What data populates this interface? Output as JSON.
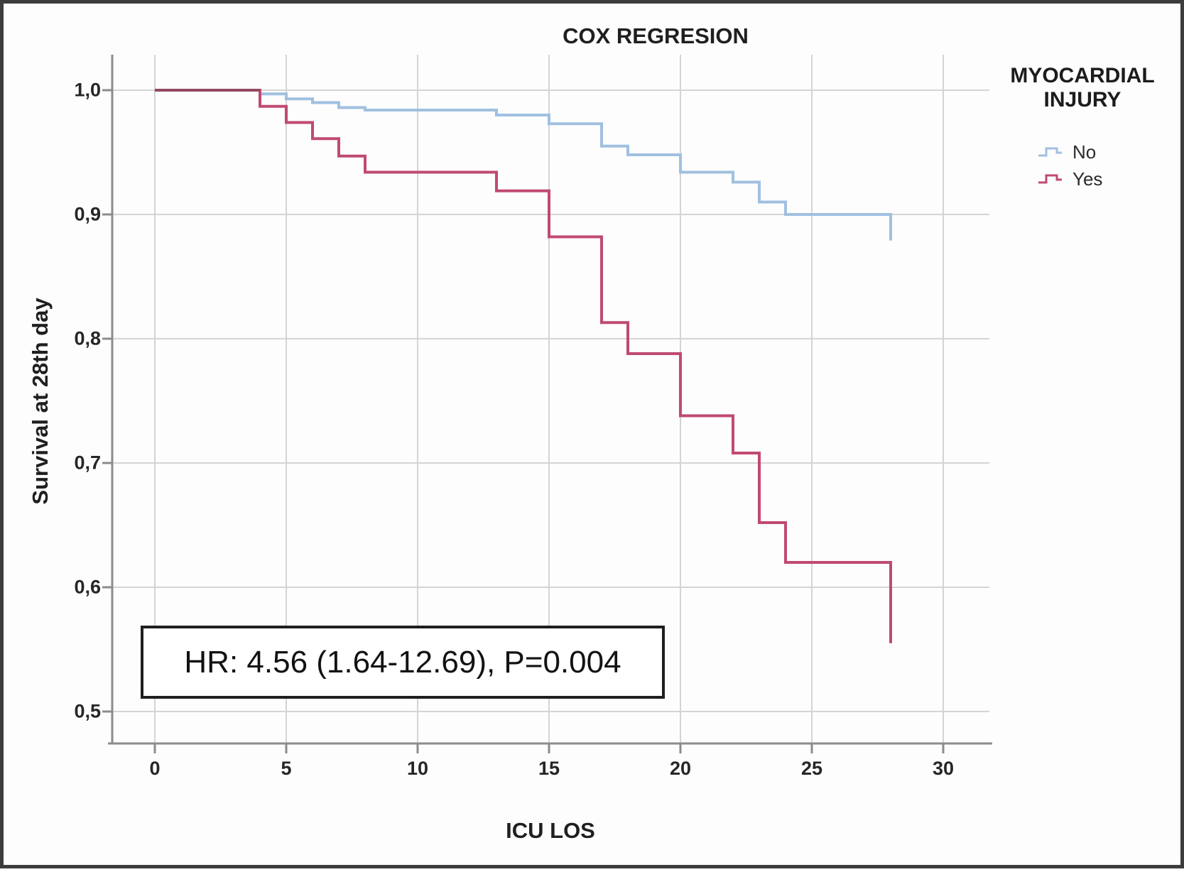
{
  "figure": {
    "title": "COX REGRESION"
  },
  "chart_data": {
    "type": "line",
    "subtype": "kaplan-meier-step",
    "title": "COX REGRESION",
    "xlabel": "ICU LOS",
    "ylabel": "Survival at 28th day",
    "xlim": [
      -1.6,
      31.8
    ],
    "ylim": [
      0.47,
      1.03
    ],
    "x_ticks": [
      0,
      5,
      10,
      15,
      20,
      25,
      30
    ],
    "y_ticks": [
      1.0,
      0.9,
      0.8,
      0.7,
      0.6,
      0.5
    ],
    "y_tick_labels": [
      "1,0",
      "0,9",
      "0,8",
      "0,7",
      "0,6",
      "0,5"
    ],
    "grid": true,
    "grid_color": "#d4d4d4",
    "axis_color": "#8c8c8c",
    "legend_position": "right",
    "overlap_color": "#944a60",
    "overlap_segment": {
      "x_start": 0,
      "x_end": 4,
      "y": 1.0
    },
    "series": [
      {
        "name": "No",
        "color": "#a0c0e0",
        "x": [
          0,
          4,
          5,
          6,
          7,
          8,
          13,
          15,
          17,
          18,
          20,
          22,
          23,
          24,
          28
        ],
        "y": [
          1.0,
          0.997,
          0.993,
          0.99,
          0.986,
          0.984,
          0.98,
          0.973,
          0.955,
          0.948,
          0.934,
          0.926,
          0.91,
          0.9,
          0.879
        ]
      },
      {
        "name": "Yes",
        "color": "#c04a70",
        "x": [
          0,
          4,
          5,
          6,
          7,
          8,
          13,
          15,
          17,
          18,
          20,
          22,
          23,
          24,
          28
        ],
        "y": [
          1.0,
          0.987,
          0.974,
          0.961,
          0.947,
          0.934,
          0.919,
          0.882,
          0.813,
          0.788,
          0.738,
          0.708,
          0.652,
          0.62,
          0.555
        ]
      }
    ]
  },
  "legend": {
    "title": "MYOCARDIAL INJURY",
    "items": [
      {
        "label": "No",
        "color": "#a0c0e0"
      },
      {
        "label": "Yes",
        "color": "#c04a70"
      }
    ]
  },
  "annotation": {
    "text": "HR: 4.56 (1.64-12.69), P=0.004"
  }
}
